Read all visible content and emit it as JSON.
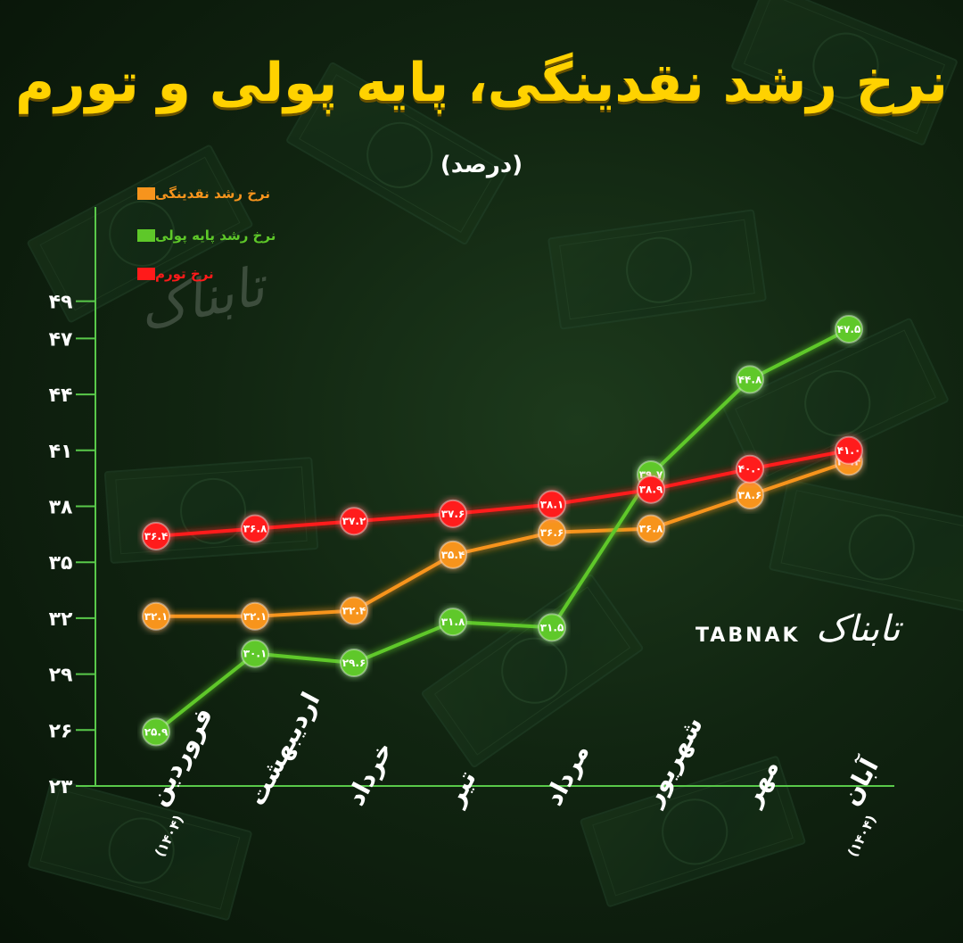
{
  "header": {
    "title": "نرخ رشد نقدینگی، پایه پولی و تورم",
    "subtitle": "(درصد)"
  },
  "brand": {
    "latin": "TABNAK",
    "persian": "تابناک"
  },
  "colors": {
    "liquidity": "#f7941d",
    "monetary_base": "#5ec829",
    "inflation": "#ff1a1a",
    "axis": "#59c94a",
    "title": "#ffd200"
  },
  "chart_data": {
    "type": "line",
    "title": "نرخ رشد نقدینگی، پایه پولی و تورم",
    "subtitle": "(درصد)",
    "xlabel": "",
    "ylabel": "",
    "ylim": [
      23,
      49
    ],
    "yticks": [
      "۲۳",
      "۲۶",
      "۲۹",
      "۳۲",
      "۳۵",
      "۳۸",
      "۴۱",
      "۴۴",
      "۴۷",
      "۴۹"
    ],
    "ytick_values": [
      23,
      26,
      29,
      32,
      35,
      38,
      41,
      44,
      47,
      49
    ],
    "categories": [
      "فروردین",
      "اردیبهشت",
      "خرداد",
      "تیر",
      "مرداد",
      "شهریور",
      "مهر",
      "آبان"
    ],
    "category_notes": [
      "(۱۴۰۴)",
      "",
      "",
      "",
      "",
      "",
      "",
      "(۱۴۰۴)"
    ],
    "grid": false,
    "legend_position": "top-left",
    "series": [
      {
        "key": "liquidity",
        "name": "نرخ رشد نقدینگی",
        "color": "#f7941d",
        "values": [
          32.1,
          32.1,
          32.4,
          35.4,
          36.6,
          36.8,
          38.6,
          40.4
        ],
        "labels": [
          "۳۲.۱",
          "۳۲.۱",
          "۳۲.۴",
          "۳۵.۴",
          "۳۶.۶",
          "۳۶.۸",
          "۳۸.۶",
          "۴۰.۴"
        ]
      },
      {
        "key": "monetary_base",
        "name": "نرخ رشد پایه پولی",
        "color": "#5ec829",
        "values": [
          25.9,
          30.1,
          29.6,
          31.8,
          31.5,
          39.7,
          44.8,
          47.5
        ],
        "labels": [
          "۲۵.۹",
          "۳۰.۱",
          "۲۹.۶",
          "۳۱.۸",
          "۳۱.۵",
          "۳۹.۷",
          "۴۴.۸",
          "۴۷.۵"
        ]
      },
      {
        "key": "inflation",
        "name": "نرخ تورم",
        "color": "#ff1a1a",
        "values": [
          36.4,
          36.8,
          37.2,
          37.6,
          38.1,
          38.9,
          40.0,
          41.0
        ],
        "labels": [
          "۳۶.۴",
          "۳۶.۸",
          "۳۷.۲",
          "۳۷.۶",
          "۳۸.۱",
          "۳۸.۹",
          "۴۰.۰",
          "۴۱.۰"
        ]
      }
    ]
  }
}
